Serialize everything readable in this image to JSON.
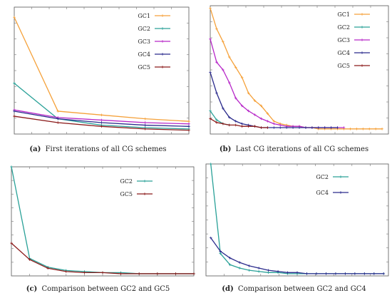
{
  "colors": {
    "GC1": "#f5a13a",
    "GC2": "#2aa198",
    "GC3": "#b728c8",
    "GC4": "#2a2a8c",
    "GC5": "#8b1a1a"
  },
  "panels": [
    {
      "id": "a",
      "caption_label": "(a)",
      "caption_text": "First iterations of all CG schemes"
    },
    {
      "id": "b",
      "caption_label": "(b)",
      "caption_text": "Last CG iterations of all CG schemes"
    },
    {
      "id": "c",
      "caption_label": "(c)",
      "caption_text": "Comparison between GC2 and GC5"
    },
    {
      "id": "d",
      "caption_label": "(d)",
      "caption_text": "Comparison between GC2 and GC4"
    }
  ],
  "chart_data": [
    {
      "type": "line",
      "title": "",
      "xlabel": "",
      "ylabel": "",
      "grid": false,
      "legend": "top-right",
      "xlim": [
        1,
        5
      ],
      "ylim": [
        0,
        100
      ],
      "series": [
        {
          "name": "GC1",
          "x": [
            1,
            2,
            3,
            4,
            5
          ],
          "values": [
            92,
            18,
            15,
            12,
            10
          ]
        },
        {
          "name": "GC2",
          "x": [
            1,
            2,
            3,
            4,
            5
          ],
          "values": [
            40,
            12,
            7,
            5,
            4
          ]
        },
        {
          "name": "GC3",
          "x": [
            1,
            2,
            3,
            4,
            5
          ],
          "values": [
            19,
            13,
            11,
            9,
            8
          ]
        },
        {
          "name": "GC4",
          "x": [
            1,
            2,
            3,
            4,
            5
          ],
          "values": [
            18,
            12,
            9,
            7,
            6
          ]
        },
        {
          "name": "GC5",
          "x": [
            1,
            2,
            3,
            4,
            5
          ],
          "values": [
            14,
            9,
            6,
            4,
            3
          ]
        }
      ]
    },
    {
      "type": "line",
      "title": "",
      "xlabel": "",
      "ylabel": "",
      "grid": false,
      "legend": "top-right",
      "xlim": [
        0,
        28
      ],
      "ylim": [
        0,
        100
      ],
      "series": [
        {
          "name": "GC1",
          "x": [
            0,
            1,
            2,
            3,
            4,
            5,
            6,
            7,
            8,
            9,
            10,
            11,
            12,
            13,
            14,
            15,
            16,
            17,
            18,
            19,
            20,
            21,
            22,
            23,
            24,
            25,
            26,
            27
          ],
          "values": [
            98,
            82,
            72,
            60,
            52,
            44,
            32,
            26,
            22,
            16,
            10,
            8,
            7,
            6,
            6,
            5,
            5,
            4,
            4,
            4,
            4,
            4,
            4,
            4,
            4,
            4,
            4,
            4
          ]
        },
        {
          "name": "GC2",
          "x": [
            0,
            1,
            2,
            3
          ],
          "values": [
            18,
            11,
            8,
            7
          ]
        },
        {
          "name": "GC3",
          "x": [
            0,
            1,
            2,
            3,
            4,
            5,
            6,
            7,
            8,
            9,
            10,
            11,
            12,
            13,
            14,
            15,
            16,
            17,
            18,
            19,
            20,
            21
          ],
          "values": [
            74,
            56,
            50,
            40,
            28,
            22,
            18,
            15,
            12,
            10,
            8,
            7,
            6,
            6,
            6,
            5,
            5,
            5,
            5,
            5,
            5,
            5
          ]
        },
        {
          "name": "GC4",
          "x": [
            0,
            1,
            2,
            3,
            4,
            5,
            6,
            7,
            8,
            9,
            10,
            11,
            12,
            13,
            14,
            15,
            16,
            17,
            18,
            19,
            20
          ],
          "values": [
            48,
            32,
            20,
            13,
            10,
            8,
            7,
            6,
            5,
            5,
            5,
            5,
            5,
            5,
            5,
            5,
            5,
            5,
            5,
            5,
            5
          ]
        },
        {
          "name": "GC5",
          "x": [
            0,
            1,
            2,
            3,
            4,
            5,
            6,
            7,
            8,
            9
          ],
          "values": [
            12,
            9,
            8,
            7,
            7,
            6,
            6,
            6,
            5,
            5
          ]
        }
      ]
    },
    {
      "type": "line",
      "title": "",
      "xlabel": "",
      "ylabel": "",
      "grid": false,
      "legend": "top-right",
      "xlim": [
        1,
        11
      ],
      "ylim": [
        0,
        100
      ],
      "series": [
        {
          "name": "GC2",
          "x": [
            1,
            2,
            3,
            4,
            5,
            6,
            7,
            8,
            9,
            10,
            11
          ],
          "values": [
            100,
            16,
            8,
            5,
            4,
            3,
            3,
            2,
            2,
            2,
            2
          ]
        },
        {
          "name": "GC5",
          "x": [
            1,
            2,
            3,
            4,
            5,
            6,
            7,
            8,
            9,
            10,
            11
          ],
          "values": [
            30,
            15,
            7,
            4,
            3,
            3,
            2,
            2,
            2,
            2,
            2
          ]
        }
      ]
    },
    {
      "type": "line",
      "title": "",
      "xlabel": "",
      "ylabel": "",
      "grid": false,
      "legend": "top-right",
      "xlim": [
        0,
        38
      ],
      "ylim": [
        0,
        100
      ],
      "series": [
        {
          "name": "GC2",
          "x": [
            1,
            3,
            5,
            7,
            9,
            11,
            13,
            15,
            17,
            19,
            21,
            23,
            25,
            27,
            29,
            31,
            33,
            35,
            37
          ],
          "values": [
            100,
            20,
            10,
            7,
            5,
            4,
            3,
            3,
            2,
            2,
            2,
            2,
            2,
            2,
            2,
            2,
            2,
            2,
            2
          ]
        },
        {
          "name": "GC4",
          "x": [
            1,
            3,
            5,
            7,
            9,
            11,
            13,
            15,
            17,
            19,
            21,
            23,
            25,
            27,
            29,
            31,
            33,
            35,
            37
          ],
          "values": [
            34,
            22,
            16,
            12,
            9,
            7,
            5,
            4,
            3,
            3,
            2,
            2,
            2,
            2,
            2,
            2,
            2,
            2,
            2
          ]
        }
      ]
    }
  ]
}
